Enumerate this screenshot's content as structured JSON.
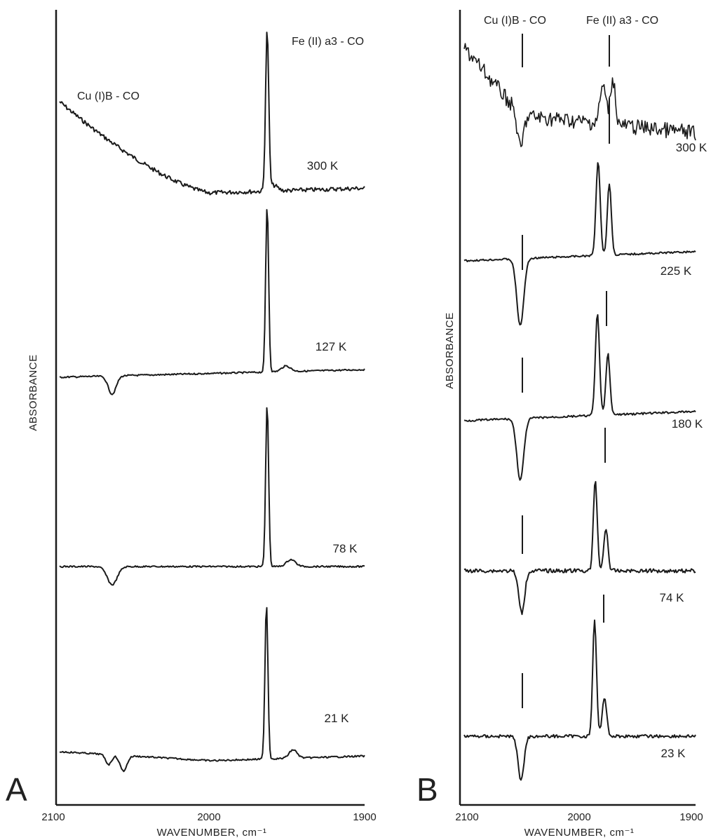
{
  "chart_data": [
    {
      "panel": "A",
      "type": "line",
      "xlabel": "WAVENUMBER, cm⁻¹",
      "ylabel": "ABSORBANCE",
      "xlim": [
        2100,
        1900
      ],
      "x_ticks": [
        "2100",
        "2000",
        "1900"
      ],
      "annotations": [
        "Cu (I)B - CO",
        "Fe (II) a3 - CO"
      ],
      "series": [
        {
          "name": "300 K",
          "feature": "broad rising background from 2100 with sharp band",
          "peak_x": 1964,
          "trough_x": null
        },
        {
          "name": "127 K",
          "feature": "sharp band, negative Cu(I)B-CO band",
          "peak_x": 1964,
          "trough_x": 2062
        },
        {
          "name": "78 K",
          "feature": "sharp band, negative Cu(I)B-CO band",
          "peak_x": 1964,
          "trough_x": 2062
        },
        {
          "name": "21 K",
          "feature": "sharp band, double negative band",
          "peak_x": 1964,
          "trough_x": 2055
        }
      ]
    },
    {
      "panel": "B",
      "type": "line",
      "xlabel": "WAVENUMBER, cm⁻¹",
      "ylabel": "ABSORBANCE",
      "xlim": [
        2100,
        1900
      ],
      "x_ticks": [
        "2100",
        "2000",
        "1900"
      ],
      "annotations": [
        "Cu (I)B - CO",
        "Fe (II) a3 - CO"
      ],
      "series": [
        {
          "name": "300 K",
          "feature": "noisy, doublet band",
          "peak_x": 1975,
          "trough_x": 2046
        },
        {
          "name": "225 K",
          "feature": "doublet band, negative Cu(I)B-CO band",
          "peak_x": 1983,
          "trough_x": 2046
        },
        {
          "name": "180 K",
          "feature": "doublet band, negative Cu(I)B-CO band",
          "peak_x": 1983,
          "trough_x": 2046
        },
        {
          "name": "74 K",
          "feature": "doublet band, negative Cu(I)B-CO band",
          "peak_x": 1985,
          "trough_x": 2046
        },
        {
          "name": "23 K",
          "feature": "doublet band, negative Cu(I)B-CO band",
          "peak_x": 1986,
          "trough_x": 2046
        }
      ]
    }
  ],
  "panel_a": {
    "letter": "A",
    "ylabel": "ABSORBANCE",
    "xlabel": "WAVENUMBER, cm⁻¹",
    "ticks": [
      "2100",
      "2000",
      "1900"
    ],
    "cu_label": "Cu (I)B - CO",
    "fe_label": "Fe (II) a3 - CO",
    "temps": [
      "300 K",
      "127 K",
      "78 K",
      "21 K"
    ]
  },
  "panel_b": {
    "letter": "B",
    "ylabel": "ABSORBANCE",
    "xlabel": "WAVENUMBER, cm⁻¹",
    "ticks": [
      "2100",
      "2000",
      "1900"
    ],
    "cu_label": "Cu (I)B - CO",
    "fe_label": "Fe (II) a3 - CO",
    "temps": [
      "300 K",
      "225 K",
      "180 K",
      "74 K",
      "23 K"
    ]
  }
}
